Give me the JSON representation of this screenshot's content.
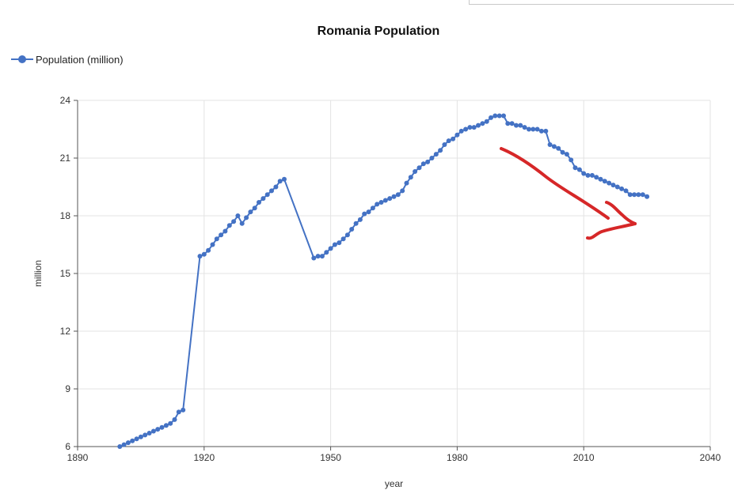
{
  "chart_data": {
    "type": "line",
    "title": "Romania Population",
    "xlabel": "year",
    "ylabel": "million",
    "xlim": [
      1890,
      2040
    ],
    "ylim": [
      6,
      24
    ],
    "x_ticks": [
      1890,
      1920,
      1950,
      1980,
      2010,
      2040
    ],
    "y_ticks": [
      6,
      9,
      12,
      15,
      18,
      21,
      24
    ],
    "grid": true,
    "legend_position": "top-left",
    "series": [
      {
        "name": "Population (million)",
        "color": "#4472c4",
        "points": [
          [
            1900,
            6.0
          ],
          [
            1901,
            6.1
          ],
          [
            1902,
            6.2
          ],
          [
            1903,
            6.3
          ],
          [
            1904,
            6.4
          ],
          [
            1905,
            6.5
          ],
          [
            1906,
            6.6
          ],
          [
            1907,
            6.7
          ],
          [
            1908,
            6.8
          ],
          [
            1909,
            6.9
          ],
          [
            1910,
            7.0
          ],
          [
            1911,
            7.1
          ],
          [
            1912,
            7.2
          ],
          [
            1913,
            7.4
          ],
          [
            1914,
            7.8
          ],
          [
            1915,
            7.9
          ],
          [
            1919,
            15.9
          ],
          [
            1920,
            16.0
          ],
          [
            1921,
            16.2
          ],
          [
            1922,
            16.5
          ],
          [
            1923,
            16.8
          ],
          [
            1924,
            17.0
          ],
          [
            1925,
            17.2
          ],
          [
            1926,
            17.5
          ],
          [
            1927,
            17.7
          ],
          [
            1928,
            18.0
          ],
          [
            1929,
            17.6
          ],
          [
            1930,
            17.9
          ],
          [
            1931,
            18.2
          ],
          [
            1932,
            18.4
          ],
          [
            1933,
            18.7
          ],
          [
            1934,
            18.9
          ],
          [
            1935,
            19.1
          ],
          [
            1936,
            19.3
          ],
          [
            1937,
            19.5
          ],
          [
            1938,
            19.8
          ],
          [
            1939,
            19.9
          ],
          [
            1946,
            15.8
          ],
          [
            1947,
            15.9
          ],
          [
            1948,
            15.9
          ],
          [
            1949,
            16.1
          ],
          [
            1950,
            16.3
          ],
          [
            1951,
            16.5
          ],
          [
            1952,
            16.6
          ],
          [
            1953,
            16.8
          ],
          [
            1954,
            17.0
          ],
          [
            1955,
            17.3
          ],
          [
            1956,
            17.6
          ],
          [
            1957,
            17.8
          ],
          [
            1958,
            18.1
          ],
          [
            1959,
            18.2
          ],
          [
            1960,
            18.4
          ],
          [
            1961,
            18.6
          ],
          [
            1962,
            18.7
          ],
          [
            1963,
            18.8
          ],
          [
            1964,
            18.9
          ],
          [
            1965,
            19.0
          ],
          [
            1966,
            19.1
          ],
          [
            1967,
            19.3
          ],
          [
            1968,
            19.7
          ],
          [
            1969,
            20.0
          ],
          [
            1970,
            20.3
          ],
          [
            1971,
            20.5
          ],
          [
            1972,
            20.7
          ],
          [
            1973,
            20.8
          ],
          [
            1974,
            21.0
          ],
          [
            1975,
            21.2
          ],
          [
            1976,
            21.4
          ],
          [
            1977,
            21.7
          ],
          [
            1978,
            21.9
          ],
          [
            1979,
            22.0
          ],
          [
            1980,
            22.2
          ],
          [
            1981,
            22.4
          ],
          [
            1982,
            22.5
          ],
          [
            1983,
            22.6
          ],
          [
            1984,
            22.6
          ],
          [
            1985,
            22.7
          ],
          [
            1986,
            22.8
          ],
          [
            1987,
            22.9
          ],
          [
            1988,
            23.1
          ],
          [
            1989,
            23.2
          ],
          [
            1990,
            23.2
          ],
          [
            1991,
            23.2
          ],
          [
            1992,
            22.8
          ],
          [
            1993,
            22.8
          ],
          [
            1994,
            22.7
          ],
          [
            1995,
            22.7
          ],
          [
            1996,
            22.6
          ],
          [
            1997,
            22.5
          ],
          [
            1998,
            22.5
          ],
          [
            1999,
            22.5
          ],
          [
            2000,
            22.4
          ],
          [
            2001,
            22.4
          ],
          [
            2002,
            21.7
          ],
          [
            2003,
            21.6
          ],
          [
            2004,
            21.5
          ],
          [
            2005,
            21.3
          ],
          [
            2006,
            21.2
          ],
          [
            2007,
            20.9
          ],
          [
            2008,
            20.5
          ],
          [
            2009,
            20.4
          ],
          [
            2010,
            20.2
          ],
          [
            2011,
            20.1
          ],
          [
            2012,
            20.1
          ],
          [
            2013,
            20.0
          ],
          [
            2014,
            19.9
          ],
          [
            2015,
            19.8
          ],
          [
            2016,
            19.7
          ],
          [
            2017,
            19.6
          ],
          [
            2018,
            19.5
          ],
          [
            2019,
            19.4
          ],
          [
            2020,
            19.3
          ],
          [
            2021,
            19.1
          ],
          [
            2022,
            19.1
          ],
          [
            2023,
            19.1
          ],
          [
            2024,
            19.1
          ],
          [
            2025,
            19.0
          ]
        ]
      }
    ],
    "annotations": [
      {
        "type": "hand-drawn-arrow",
        "color": "#d62728",
        "direction": "down-right"
      }
    ]
  }
}
